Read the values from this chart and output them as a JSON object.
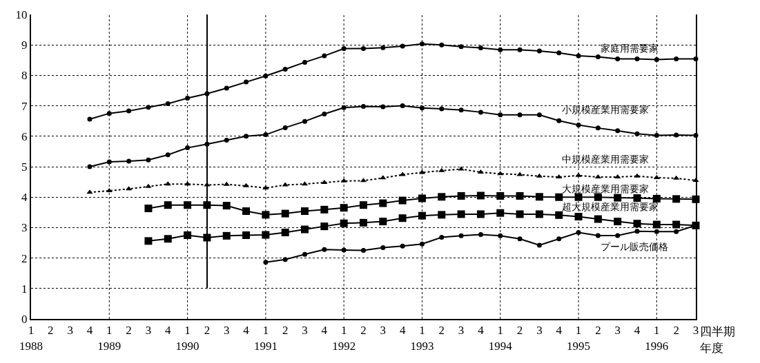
{
  "chart_data": {
    "type": "line",
    "xlabel": "四半期",
    "annotations": [
      "年度"
    ],
    "categories": [
      "1\n1988",
      "2",
      "3",
      "4",
      "1\n1989",
      "2",
      "3",
      "4",
      "1\n1990",
      "2",
      "3",
      "4",
      "1\n1991",
      "2",
      "3",
      "4",
      "1\n1992",
      "2",
      "3",
      "4",
      "1\n1993",
      "2",
      "3",
      "4",
      "1\n1994",
      "2",
      "3",
      "4",
      "1\n1995",
      "2",
      "3",
      "4",
      "1\n1996",
      "2",
      "3"
    ],
    "ylim": [
      0,
      10
    ],
    "yticks": [
      0,
      1,
      2,
      3,
      4,
      5,
      6,
      7,
      8,
      9,
      10
    ],
    "grid": true,
    "legend": false,
    "series": [
      {
        "name": "家庭用需要家",
        "color": "#000000",
        "marker": "circle",
        "line_style": "solid",
        "values": [
          null,
          null,
          null,
          6.56,
          6.75,
          6.83,
          6.95,
          7.07,
          7.25,
          7.4,
          7.58,
          7.78,
          7.98,
          8.2,
          8.43,
          8.64,
          8.88,
          8.88,
          8.91,
          8.96,
          9.03,
          9.0,
          8.94,
          8.9,
          8.84,
          8.84,
          8.8,
          8.74,
          8.64,
          8.61,
          8.54,
          8.54,
          8.52,
          8.54,
          8.54
        ]
      },
      {
        "name": "小規模産業用需要家",
        "color": "#000000",
        "marker": "circle",
        "line_style": "solid",
        "values": [
          null,
          null,
          null,
          5.0,
          5.16,
          5.18,
          5.22,
          5.39,
          5.62,
          5.74,
          5.87,
          6.0,
          6.05,
          6.28,
          6.49,
          6.73,
          6.94,
          6.98,
          6.97,
          7.0,
          6.93,
          6.9,
          6.86,
          6.79,
          6.7,
          6.7,
          6.7,
          6.51,
          6.37,
          6.27,
          6.18,
          6.08,
          6.03,
          6.04,
          6.03
        ]
      },
      {
        "name": "中規模産業用需要家",
        "color": "#000000",
        "marker": "triangle",
        "line_style": "dotted",
        "values": [
          null,
          null,
          null,
          4.16,
          4.21,
          4.27,
          4.35,
          4.43,
          4.43,
          4.4,
          4.42,
          4.37,
          4.3,
          4.4,
          4.43,
          4.48,
          4.53,
          4.54,
          4.63,
          4.74,
          4.81,
          4.87,
          4.92,
          4.82,
          4.77,
          4.74,
          4.69,
          4.66,
          4.71,
          4.66,
          4.66,
          4.69,
          4.64,
          4.62,
          4.55
        ]
      },
      {
        "name": "大規模産業用需要家",
        "color": "#000000",
        "marker": "square",
        "line_style": "solid",
        "values": [
          null,
          null,
          null,
          null,
          null,
          null,
          3.63,
          3.74,
          3.74,
          3.74,
          3.72,
          3.54,
          3.42,
          3.46,
          3.54,
          3.59,
          3.65,
          3.74,
          3.8,
          3.89,
          3.96,
          4.01,
          4.04,
          4.05,
          4.04,
          4.04,
          4.01,
          4.0,
          4.0,
          4.0,
          3.98,
          3.97,
          3.95,
          3.94,
          3.93
        ]
      },
      {
        "name": "超大規模産業用需要家",
        "color": "#000000",
        "marker": "square",
        "line_style": "solid",
        "values": [
          null,
          null,
          null,
          null,
          null,
          null,
          2.56,
          2.63,
          2.75,
          2.67,
          2.73,
          2.75,
          2.76,
          2.84,
          2.94,
          3.04,
          3.14,
          3.16,
          3.2,
          3.31,
          3.39,
          3.42,
          3.44,
          3.44,
          3.48,
          3.44,
          3.44,
          3.41,
          3.36,
          3.28,
          3.2,
          3.13,
          3.1,
          3.1,
          3.07
        ]
      },
      {
        "name": "プール販売価格",
        "color": "#000000",
        "marker": "circle",
        "line_style": "solid",
        "values": [
          null,
          null,
          null,
          null,
          null,
          null,
          null,
          null,
          null,
          null,
          null,
          null,
          1.86,
          1.95,
          2.12,
          2.28,
          2.26,
          2.25,
          2.34,
          2.39,
          2.46,
          2.68,
          2.73,
          2.77,
          2.73,
          2.63,
          2.42,
          2.63,
          2.84,
          2.74,
          2.74,
          2.88,
          2.87,
          2.87,
          3.07
        ]
      },
      {
        "type": "bar",
        "color": "#000000",
        "values": [
          null,
          null,
          null,
          null,
          null,
          null,
          null,
          null,
          null,
          9,
          null,
          null,
          null,
          null,
          null,
          null,
          null,
          null,
          null,
          null,
          null,
          null,
          null,
          null,
          null,
          null,
          null,
          null,
          null,
          null,
          null,
          null,
          null,
          null,
          null
        ],
        "base": [
          null,
          null,
          null,
          null,
          null,
          null,
          null,
          null,
          null,
          1,
          null,
          null,
          null,
          null,
          null,
          null,
          null,
          null,
          null,
          null,
          null,
          null,
          null,
          null,
          null,
          null,
          null,
          null,
          null,
          null,
          null,
          null,
          null,
          null,
          null
        ]
      }
    ]
  }
}
